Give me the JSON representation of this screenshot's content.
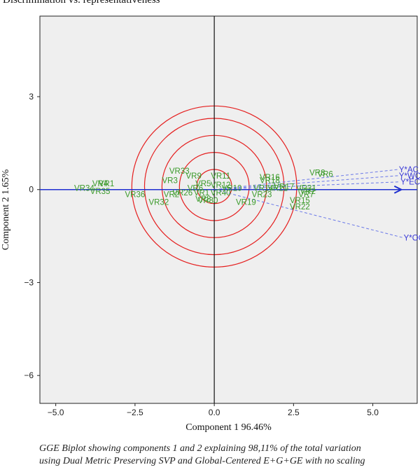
{
  "title": "Discrimination vs. representativeness",
  "caption": [
    "GGE Biplot showing components 1 and 2 explaining 98,11% of the total variation",
    "using Dual Metric Preserving SVP and Global-Centered E+G+GE with no scaling"
  ],
  "colors": {
    "panel": "#efefef",
    "genotype": "#3a9a2a",
    "environment": "#3a3ad6",
    "axis_arrow": "#1f2fd0",
    "circles": "#e51f1f"
  },
  "chart_data": {
    "type": "scatter",
    "xlabel": "Component 1 96.46%",
    "ylabel": "Component 2 1.65%",
    "xlim": [
      -5.5,
      6.4
    ],
    "ylim": [
      -6.9,
      5.6
    ],
    "xticks": [
      -5.0,
      -2.5,
      0.0,
      2.5,
      5.0
    ],
    "yticks": [
      3,
      0,
      -3,
      -6
    ],
    "ytick_labels": [
      "3",
      "0",
      "−3",
      "−6"
    ],
    "xtick_labels": [
      "−5.0",
      "−2.5",
      "0.0",
      "2.5",
      "5.0"
    ],
    "circle_center": [
      0.0,
      0.1
    ],
    "circle_radii": [
      0.55,
      1.1,
      1.65,
      2.2,
      2.6
    ],
    "genotypes": [
      {
        "label": "VR4",
        "x": -3.6,
        "y": 0.2
      },
      {
        "label": "VR1",
        "x": -3.4,
        "y": 0.2
      },
      {
        "label": "VR34",
        "x": -4.1,
        "y": 0.05
      },
      {
        "label": "VR35",
        "x": -3.6,
        "y": -0.05
      },
      {
        "label": "VR36",
        "x": -2.5,
        "y": -0.15
      },
      {
        "label": "VR32",
        "x": -1.75,
        "y": -0.4
      },
      {
        "label": "VR33",
        "x": -1.1,
        "y": 0.6
      },
      {
        "label": "VR3",
        "x": -1.4,
        "y": 0.3
      },
      {
        "label": "VR2",
        "x": -1.35,
        "y": -0.15
      },
      {
        "label": "VR26",
        "x": -1.0,
        "y": -0.1
      },
      {
        "label": "VR9",
        "x": -0.65,
        "y": 0.45
      },
      {
        "label": "VR11",
        "x": 0.2,
        "y": 0.45
      },
      {
        "label": "VR5",
        "x": -0.35,
        "y": 0.2
      },
      {
        "label": "VR6",
        "x": -0.6,
        "y": 0.05
      },
      {
        "label": "VR12",
        "x": 0.2,
        "y": 0.15
      },
      {
        "label": "VR10",
        "x": 0.55,
        "y": 0.05
      },
      {
        "label": "VR8",
        "x": -0.35,
        "y": -0.3
      },
      {
        "label": "VR30",
        "x": -0.2,
        "y": -0.35
      },
      {
        "label": "VR1",
        "x": -0.4,
        "y": -0.1
      },
      {
        "label": "VR40",
        "x": 0.2,
        "y": -0.1
      },
      {
        "label": "VR19",
        "x": 1.0,
        "y": -0.4
      },
      {
        "label": "VR23",
        "x": 1.5,
        "y": -0.15
      },
      {
        "label": "VR16",
        "x": 1.75,
        "y": 0.4
      },
      {
        "label": "VR18",
        "x": 1.75,
        "y": 0.3
      },
      {
        "label": "VR14",
        "x": 1.55,
        "y": 0.05
      },
      {
        "label": "VR21",
        "x": 2.0,
        "y": 0.05
      },
      {
        "label": "VR17",
        "x": 2.2,
        "y": 0.1
      },
      {
        "label": "VR31",
        "x": 2.9,
        "y": 0.05
      },
      {
        "label": "VR2",
        "x": 2.95,
        "y": -0.05
      },
      {
        "label": "VR7",
        "x": 2.9,
        "y": -0.15
      },
      {
        "label": "VR15",
        "x": 2.7,
        "y": -0.35
      },
      {
        "label": "VR22",
        "x": 2.7,
        "y": -0.55
      },
      {
        "label": "VR8",
        "x": 3.25,
        "y": 0.55
      },
      {
        "label": "VR6",
        "x": 3.5,
        "y": 0.5
      }
    ],
    "environments": [
      {
        "label": "Y*AC",
        "x": 5.8,
        "y": 0.65
      },
      {
        "label": "Y*WC",
        "x": 5.8,
        "y": 0.45
      },
      {
        "label": "Y*EC",
        "x": 5.85,
        "y": 0.25
      },
      {
        "label": "Y*OC",
        "x": 5.95,
        "y": -1.55
      }
    ],
    "average_environment_axis": {
      "from": -5.5,
      "to": 5.9
    }
  }
}
